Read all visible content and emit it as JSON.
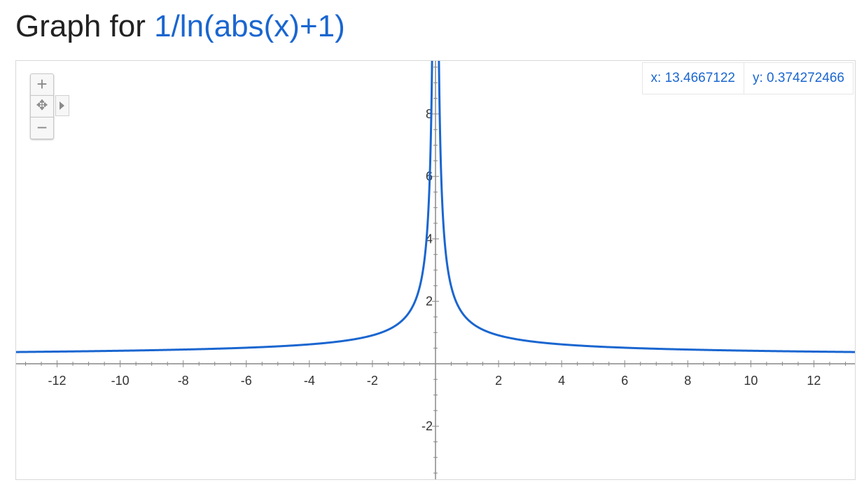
{
  "title": {
    "prefix": "Graph for",
    "function": "1/ln(abs(x)+1)"
  },
  "readout": {
    "x": "x: 13.4667122",
    "y": "y: 0.374272466"
  },
  "zoom_controls": {
    "zoom_in": "+",
    "pan": "✥",
    "zoom_out": "−"
  },
  "colors": {
    "curve": "#1a66d0",
    "axis": "#888888",
    "title_fn": "#1a66d0"
  },
  "chart_data": {
    "type": "line",
    "title": "Graph for 1/ln(abs(x)+1)",
    "function": "1/ln(abs(x)+1)",
    "xlim": [
      -13.3,
      13.3
    ],
    "ylim": [
      -3.7,
      9.7
    ],
    "x_ticks": [
      -12,
      -10,
      -8,
      -6,
      -4,
      -2,
      2,
      4,
      6,
      8,
      10,
      12
    ],
    "y_ticks": [
      -2,
      2,
      4,
      6,
      8
    ],
    "x_tick_labels": [
      "-12",
      "-10",
      "-8",
      "-6",
      "-4",
      "-2",
      "2",
      "4",
      "6",
      "8",
      "10",
      "12"
    ],
    "y_tick_labels": [
      "-2",
      "2",
      "4",
      "6",
      "8"
    ],
    "grid": false,
    "series": [
      {
        "x": [
          -13.3,
          -12,
          -10,
          -8,
          -6,
          -4,
          -2,
          -1,
          -0.5,
          -0.3,
          -0.2,
          -0.15,
          -0.12,
          0.12,
          0.15,
          0.2,
          0.3,
          0.5,
          1,
          2,
          4,
          6,
          8,
          10,
          12,
          13.3
        ],
        "y": [
          0.375,
          0.39,
          0.417,
          0.455,
          0.514,
          0.621,
          0.91,
          1.443,
          2.466,
          3.812,
          5.485,
          7.155,
          8.824,
          8.824,
          7.155,
          5.485,
          3.812,
          2.466,
          1.443,
          0.91,
          0.621,
          0.514,
          0.455,
          0.417,
          0.39,
          0.375
        ]
      }
    ]
  }
}
